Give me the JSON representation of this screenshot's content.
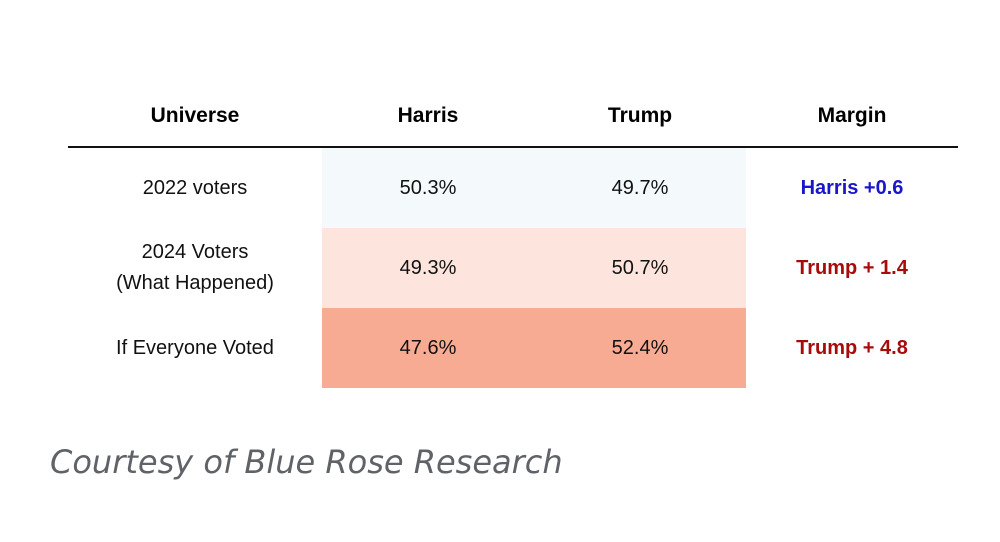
{
  "table": {
    "headers": {
      "universe": "Universe",
      "harris": "Harris",
      "trump": "Trump",
      "margin": "Margin"
    },
    "rows": [
      {
        "universe": "2022 voters",
        "harris": "50.3%",
        "trump": "49.7%",
        "margin": "Harris +0.6",
        "margin_color": "#1a16c9",
        "fill_color": "#f4f9fc"
      },
      {
        "universe": "2024 Voters\n(What Happened)",
        "harris": "49.3%",
        "trump": "50.7%",
        "margin": "Trump + 1.4",
        "margin_color": "#a60c0c",
        "fill_color": "#fde5dd"
      },
      {
        "universe": "If Everyone Voted",
        "harris": "47.6%",
        "trump": "52.4%",
        "margin": "Trump + 4.8",
        "margin_color": "#a60c0c",
        "fill_color": "#f8ab93"
      }
    ]
  },
  "caption": "Courtesy of Blue Rose Research"
}
